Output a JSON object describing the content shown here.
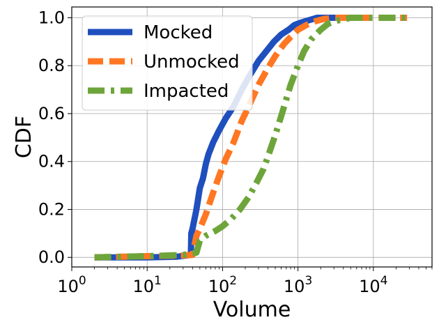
{
  "chart_data": {
    "type": "line",
    "title": "",
    "xlabel": "Volume",
    "ylabel": "CDF",
    "xscale": "log",
    "xlim": [
      1,
      60000
    ],
    "ylim": [
      -0.04,
      1.045
    ],
    "grid": true,
    "legend_position": "top-left",
    "x_ticks": [
      {
        "value": 1,
        "base": "10",
        "exp": "0"
      },
      {
        "value": 10,
        "base": "10",
        "exp": "1"
      },
      {
        "value": 100,
        "base": "10",
        "exp": "2"
      },
      {
        "value": 1000,
        "base": "10",
        "exp": "3"
      },
      {
        "value": 10000,
        "base": "10",
        "exp": "4"
      }
    ],
    "y_ticks": [
      "0.0",
      "0.2",
      "0.4",
      "0.6",
      "0.8",
      "1.0"
    ],
    "series": [
      {
        "name": "Mocked",
        "color": "#1f4fbd",
        "dash": "solid",
        "x": [
          2,
          10,
          25,
          38,
          38.5,
          40,
          45,
          50,
          55,
          60,
          65,
          75,
          90,
          110,
          140,
          180,
          230,
          300,
          380,
          480,
          600,
          750,
          900,
          1100,
          1400,
          1800,
          2500,
          3500,
          5000
        ],
        "y": [
          0,
          0,
          0.003,
          0.01,
          0.1,
          0.12,
          0.2,
          0.29,
          0.33,
          0.39,
          0.43,
          0.48,
          0.53,
          0.58,
          0.63,
          0.7,
          0.76,
          0.82,
          0.86,
          0.9,
          0.93,
          0.95,
          0.97,
          0.98,
          0.99,
          1.0,
          1.0,
          1.0,
          1.0
        ]
      },
      {
        "name": "Unmocked",
        "color": "#ff7722",
        "dash": "dashed",
        "x": [
          2,
          10,
          30,
          40,
          45,
          50,
          60,
          75,
          90,
          110,
          140,
          180,
          230,
          300,
          400,
          500,
          650,
          800,
          1000,
          1300,
          1700,
          2200,
          3000,
          5000,
          10000,
          28000
        ],
        "y": [
          0,
          0.005,
          0.008,
          0.01,
          0.09,
          0.12,
          0.18,
          0.27,
          0.34,
          0.41,
          0.48,
          0.57,
          0.64,
          0.72,
          0.79,
          0.84,
          0.89,
          0.92,
          0.95,
          0.97,
          0.985,
          0.995,
          1.0,
          1.0,
          1.0,
          1.0
        ]
      },
      {
        "name": "Impacted",
        "color": "#6da53a",
        "dash": "dashdot",
        "x": [
          2,
          10,
          30,
          45,
          50,
          60,
          80,
          100,
          130,
          170,
          220,
          280,
          350,
          420,
          500,
          600,
          700,
          800,
          1000,
          1200,
          1500,
          2000,
          2500,
          3500,
          5000,
          10000,
          28000
        ],
        "y": [
          0,
          0.005,
          0.01,
          0.02,
          0.07,
          0.09,
          0.11,
          0.13,
          0.16,
          0.2,
          0.25,
          0.31,
          0.37,
          0.44,
          0.51,
          0.59,
          0.66,
          0.72,
          0.8,
          0.86,
          0.91,
          0.95,
          0.975,
          0.99,
          1.0,
          1.0,
          1.0
        ]
      }
    ]
  }
}
